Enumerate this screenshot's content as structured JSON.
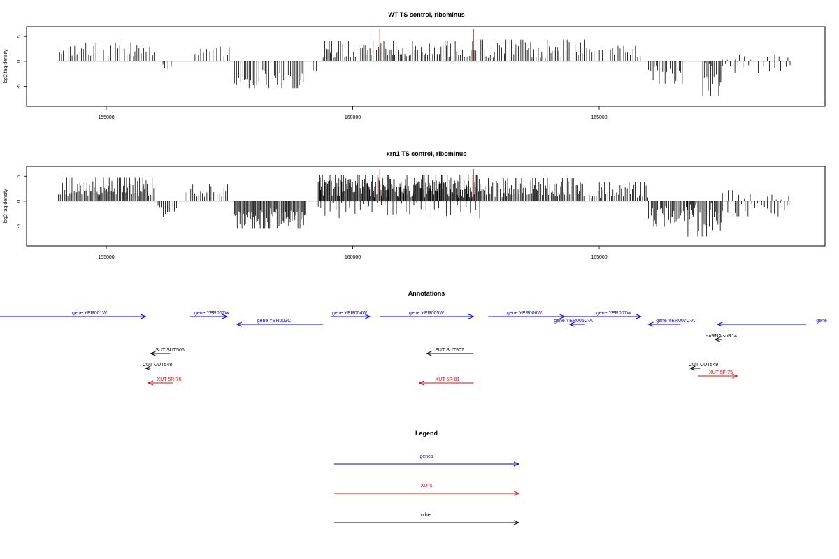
{
  "chart_data": [
    {
      "type": "bar",
      "title": "WT TS control, ribominus",
      "xlabel": "",
      "ylabel": "log2 tag density",
      "xlim": [
        153100,
        167950
      ],
      "ylim": [
        -9,
        7
      ],
      "xticks": [
        155000,
        160000,
        165000
      ],
      "yticks": [
        5,
        0,
        -5
      ],
      "markers": [
        160550,
        162450
      ],
      "marker_color": "#ff0000",
      "bar_color": "#000000",
      "segments": [
        {
          "from": 154000,
          "to": 156000,
          "sign": 1,
          "mean": 2.2,
          "amp": 1.2,
          "spacing": 45
        },
        {
          "from": 156150,
          "to": 156350,
          "sign": -1,
          "mean": 1.2,
          "amp": 0.8,
          "spacing": 55
        },
        {
          "from": 156800,
          "to": 157500,
          "sign": 1,
          "mean": 2.0,
          "amp": 1.0,
          "spacing": 55
        },
        {
          "from": 157600,
          "to": 159000,
          "sign": -1,
          "mean": 3.3,
          "amp": 1.6,
          "spacing": 35
        },
        {
          "from": 159200,
          "to": 159300,
          "sign": -1,
          "mean": 1.2,
          "amp": 0.6,
          "spacing": 60
        },
        {
          "from": 159400,
          "to": 162500,
          "sign": 1,
          "mean": 2.1,
          "amp": 1.5,
          "spacing": 32
        },
        {
          "from": 162600,
          "to": 164700,
          "sign": 1,
          "mean": 2.3,
          "amp": 1.6,
          "spacing": 36
        },
        {
          "from": 164700,
          "to": 165900,
          "sign": 1,
          "mean": 1.8,
          "amp": 1.0,
          "spacing": 55
        },
        {
          "from": 166000,
          "to": 166700,
          "sign": -1,
          "mean": 2.4,
          "amp": 1.6,
          "spacing": 35
        },
        {
          "from": 167100,
          "to": 167500,
          "sign": -1,
          "mean": 3.0,
          "amp": 3.0,
          "spacing": 25
        },
        {
          "from": 167500,
          "to": 168900,
          "sign": 1,
          "mean": 0.6,
          "amp": 0.6,
          "spacing": 140
        },
        {
          "from": 167500,
          "to": 168900,
          "sign": -1,
          "mean": 1.2,
          "amp": 0.8,
          "spacing": 90
        }
      ]
    },
    {
      "type": "bar",
      "title": "xrn1 TS control, ribominus",
      "xlabel": "",
      "ylabel": "log2 tag density",
      "xlim": [
        153100,
        167950
      ],
      "ylim": [
        -9,
        7
      ],
      "xticks": [
        155000,
        160000,
        165000
      ],
      "yticks": [
        5,
        0,
        -5
      ],
      "markers": [
        160550,
        162450
      ],
      "marker_color": "#ff0000",
      "bar_color": "#000000",
      "segments": [
        {
          "from": 154000,
          "to": 156000,
          "sign": 1,
          "mean": 2.6,
          "amp": 1.6,
          "spacing": 22
        },
        {
          "from": 156050,
          "to": 156450,
          "sign": -1,
          "mean": 1.8,
          "amp": 1.0,
          "spacing": 40
        },
        {
          "from": 156600,
          "to": 157500,
          "sign": 1,
          "mean": 1.9,
          "amp": 1.1,
          "spacing": 40
        },
        {
          "from": 157600,
          "to": 159050,
          "sign": -1,
          "mean": 3.2,
          "amp": 1.8,
          "spacing": 20
        },
        {
          "from": 159300,
          "to": 162600,
          "sign": 1,
          "mean": 2.7,
          "amp": 2.0,
          "spacing": 14
        },
        {
          "from": 159300,
          "to": 162600,
          "sign": -1,
          "mean": 1.6,
          "amp": 1.4,
          "spacing": 80
        },
        {
          "from": 162600,
          "to": 164700,
          "sign": 1,
          "mean": 2.4,
          "amp": 1.7,
          "spacing": 22
        },
        {
          "from": 164800,
          "to": 166000,
          "sign": 1,
          "mean": 2.0,
          "amp": 1.4,
          "spacing": 32
        },
        {
          "from": 166000,
          "to": 166800,
          "sign": -1,
          "mean": 2.8,
          "amp": 1.8,
          "spacing": 24
        },
        {
          "from": 166800,
          "to": 167500,
          "sign": -1,
          "mean": 3.2,
          "amp": 3.0,
          "spacing": 22
        },
        {
          "from": 167500,
          "to": 168900,
          "sign": 1,
          "mean": 1.0,
          "amp": 0.9,
          "spacing": 110
        },
        {
          "from": 167500,
          "to": 168900,
          "sign": -1,
          "mean": 1.5,
          "amp": 1.2,
          "spacing": 60
        }
      ]
    }
  ],
  "annotations": {
    "title": "Annotations",
    "colors": {
      "gene": "#0000ff",
      "xut": "#ff0000",
      "other": "#000000"
    },
    "items": [
      {
        "label": "gene YER001W",
        "kind": "gene",
        "from": 152350,
        "to": 155800,
        "dir": "right"
      },
      {
        "label": "gene YER002W",
        "kind": "gene",
        "from": 156700,
        "to": 157450,
        "dir": "right"
      },
      {
        "label": "gene YER003C",
        "kind": "gene",
        "from": 157650,
        "to": 159400,
        "dir": "left"
      },
      {
        "label": "gene YER004W",
        "kind": "gene",
        "from": 159550,
        "to": 160350,
        "dir": "right"
      },
      {
        "label": "gene YER005W",
        "kind": "gene",
        "from": 160550,
        "to": 162450,
        "dir": "right"
      },
      {
        "label": "gene YER006W",
        "kind": "gene",
        "from": 162750,
        "to": 164300,
        "dir": "right"
      },
      {
        "label": "gene YER007W",
        "kind": "gene",
        "from": 164300,
        "to": 165850,
        "dir": "right"
      },
      {
        "label": "gene YER006C-A",
        "kind": "gene",
        "from": 164400,
        "to": 164700,
        "dir": "left"
      },
      {
        "label": "gene YER007C-A",
        "kind": "gene",
        "from": 166000,
        "to": 166650,
        "dir": "left"
      },
      {
        "label": "gene",
        "kind": "gene",
        "from": 167400,
        "to": 169200,
        "dir": "left"
      },
      {
        "label": "snRNA snR14",
        "kind": "other",
        "from": 167350,
        "to": 167500,
        "dir": "left"
      },
      {
        "label": "SUT SUT506",
        "kind": "other",
        "from": 155900,
        "to": 156300,
        "dir": "left"
      },
      {
        "label": "SUT SUT507",
        "kind": "other",
        "from": 161500,
        "to": 162450,
        "dir": "left"
      },
      {
        "label": "CUT CUT548",
        "kind": "other",
        "from": 155800,
        "to": 155900,
        "dir": "left"
      },
      {
        "label": "CUT CUT549",
        "kind": "other",
        "from": 166850,
        "to": 167050,
        "dir": "left"
      },
      {
        "label": "XUT 5R-76",
        "kind": "xut",
        "from": 155850,
        "to": 156350,
        "dir": "left"
      },
      {
        "label": "XUT 5R-81",
        "kind": "xut",
        "from": 161350,
        "to": 162450,
        "dir": "left"
      },
      {
        "label": "XUT 5F-75",
        "kind": "xut",
        "from": 167000,
        "to": 167800,
        "dir": "right"
      }
    ]
  },
  "legend": {
    "title": "Legend",
    "entries": [
      {
        "label": "genes",
        "color": "#0000ff"
      },
      {
        "label": "XUTs",
        "color": "#ff0000"
      },
      {
        "label": "other",
        "color": "#000000"
      }
    ]
  }
}
